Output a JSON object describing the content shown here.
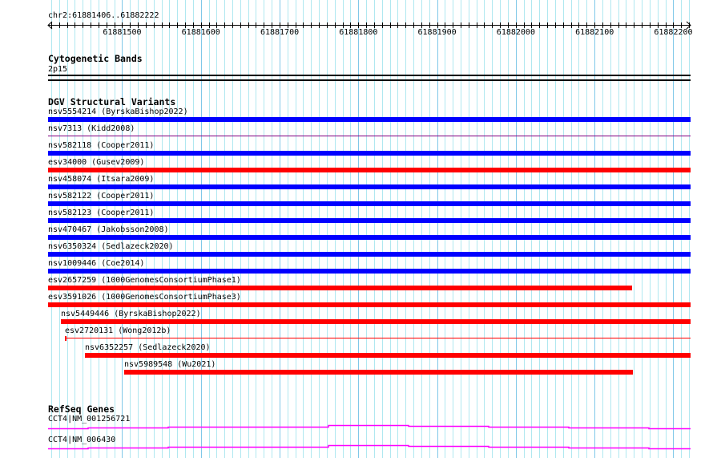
{
  "view": {
    "location": "chr2:61881406..61882222",
    "start": 61881406,
    "end": 61882222
  },
  "ruler": {
    "labels": [
      "61881500",
      "61881600",
      "61881700",
      "61881800",
      "61881900",
      "61882000",
      "61882100",
      "61882200"
    ]
  },
  "cytoband": {
    "title": "Cytogenetic Bands",
    "band": "2p15"
  },
  "dgv": {
    "title": "DGV Structural Variants",
    "colors": {
      "gain": "#0000ff",
      "loss": "#ff0000",
      "other": "#800080"
    },
    "items": [
      {
        "label": "nsv5554214 (ByrskaBishop2022)",
        "start": 61881406,
        "end": 61882222,
        "color": "#0000ff",
        "thin": false
      },
      {
        "label": "nsv7313 (Kidd2008)",
        "start": 61881406,
        "end": 61882222,
        "color": "#800080",
        "thin": true
      },
      {
        "label": "nsv582118 (Cooper2011)",
        "start": 61881406,
        "end": 61882222,
        "color": "#0000ff",
        "thin": false
      },
      {
        "label": "esv34000 (Gusev2009)",
        "start": 61881406,
        "end": 61882222,
        "color": "#ff0000",
        "thin": false
      },
      {
        "label": "nsv458074 (Itsara2009)",
        "start": 61881406,
        "end": 61882222,
        "color": "#0000ff",
        "thin": false
      },
      {
        "label": "nsv582122 (Cooper2011)",
        "start": 61881406,
        "end": 61882222,
        "color": "#0000ff",
        "thin": false
      },
      {
        "label": "nsv582123 (Cooper2011)",
        "start": 61881406,
        "end": 61882222,
        "color": "#0000ff",
        "thin": false
      },
      {
        "label": "nsv470467 (Jakobsson2008)",
        "start": 61881406,
        "end": 61882222,
        "color": "#0000ff",
        "thin": false
      },
      {
        "label": "nsv6350324 (Sedlazeck2020)",
        "start": 61881406,
        "end": 61882222,
        "color": "#0000ff",
        "thin": false
      },
      {
        "label": "nsv1009446 (Coe2014)",
        "start": 61881406,
        "end": 61882222,
        "color": "#0000ff",
        "thin": false
      },
      {
        "label": "esv2657259 (1000GenomesConsortiumPhase1)",
        "start": 61881406,
        "end": 61882148,
        "color": "#ff0000",
        "thin": false
      },
      {
        "label": "esv3591026 (1000GenomesConsortiumPhase3)",
        "start": 61881406,
        "end": 61882222,
        "color": "#ff0000",
        "thin": false
      },
      {
        "label": "nsv5449446 (ByrskaBishop2022)",
        "start": 61881422,
        "end": 61882222,
        "color": "#ff0000",
        "thin": false
      },
      {
        "label": "esv2720131 (Wong2012b)",
        "start": 61881427,
        "end": 61882222,
        "color": "#ff0000",
        "thin": true
      },
      {
        "label": "nsv6352257 (Sedlazeck2020)",
        "start": 61881453,
        "end": 61882222,
        "color": "#ff0000",
        "thin": false
      },
      {
        "label": "nsv5989548 (Wu2021)",
        "start": 61881503,
        "end": 61882149,
        "color": "#ff0000",
        "thin": false
      }
    ]
  },
  "refseq": {
    "title": "RefSeq Genes",
    "color": "#ff00ff",
    "items": [
      {
        "label": "CCT4|NM_001256721"
      },
      {
        "label": "CCT4|NM_006430"
      }
    ]
  }
}
